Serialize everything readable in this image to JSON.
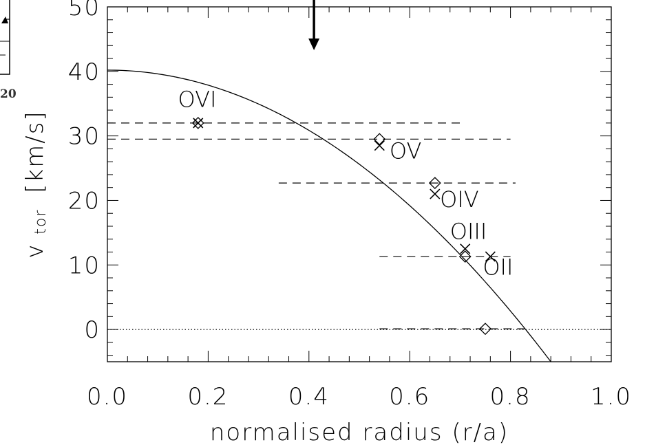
{
  "chart_data": {
    "type": "scatter",
    "title": "",
    "xlabel": "normalised radius (r/a)",
    "ylabel_main": "v",
    "ylabel_sub": "tor",
    "ylabel_unit": "[km/s]",
    "xlim": [
      0.0,
      1.0
    ],
    "ylim": [
      -5,
      50
    ],
    "xticks": [
      "0.0",
      "0.2",
      "0.4",
      "0.6",
      "0.8",
      "1.0"
    ],
    "yticks": [
      "0",
      "10",
      "20",
      "30",
      "40",
      "50"
    ],
    "grid": false,
    "zero_line": {
      "y": 0,
      "style": "dotted"
    },
    "arrow_marker": {
      "x": 0.41,
      "direction": "down"
    },
    "fit_curve": {
      "type": "parabola",
      "y0": 40.2,
      "zero_crossing": 0.83,
      "x_end": 0.88
    },
    "series": [
      {
        "marker": "diamond",
        "points": [
          {
            "ion": "OVI",
            "x": 0.18,
            "y": 32.0
          },
          {
            "ion": "OV",
            "x": 0.54,
            "y": 29.5
          },
          {
            "ion": "OIV",
            "x": 0.65,
            "y": 22.7
          },
          {
            "ion": "OIII",
            "x": 0.71,
            "y": 11.3
          },
          {
            "ion": "OII",
            "x": 0.75,
            "y": 0.1
          }
        ]
      },
      {
        "marker": "cross",
        "points": [
          {
            "ion": "OVI",
            "x": 0.18,
            "y": 32.0
          },
          {
            "ion": "OV",
            "x": 0.54,
            "y": 28.5
          },
          {
            "ion": "OIV",
            "x": 0.65,
            "y": 21.0
          },
          {
            "ion": "OIII",
            "x": 0.71,
            "y": 12.5
          },
          {
            "ion": "OII",
            "x": 0.76,
            "y": 11.3
          }
        ]
      }
    ],
    "ranges": [
      {
        "y": 32.0,
        "x_start": 0.0,
        "x_end": 0.71
      },
      {
        "y": 29.5,
        "x_start": 0.0,
        "x_end": 0.8
      },
      {
        "y": 22.7,
        "x_start": 0.34,
        "x_end": 0.81
      },
      {
        "y": 11.3,
        "x_start": 0.54,
        "x_end": 0.8
      },
      {
        "y": 0.1,
        "x_start": 0.54,
        "x_end": 0.83
      }
    ],
    "annotations": [
      {
        "text": "OVI",
        "x": 0.14,
        "y": 34.5
      },
      {
        "text": "OV",
        "x": 0.56,
        "y": 26.5
      },
      {
        "text": "OIV",
        "x": 0.66,
        "y": 19.0
      },
      {
        "text": "OIII",
        "x": 0.68,
        "y": 14.0
      },
      {
        "text": "OII",
        "x": 0.745,
        "y": 8.5
      }
    ],
    "inset_fragment_label": "20"
  }
}
